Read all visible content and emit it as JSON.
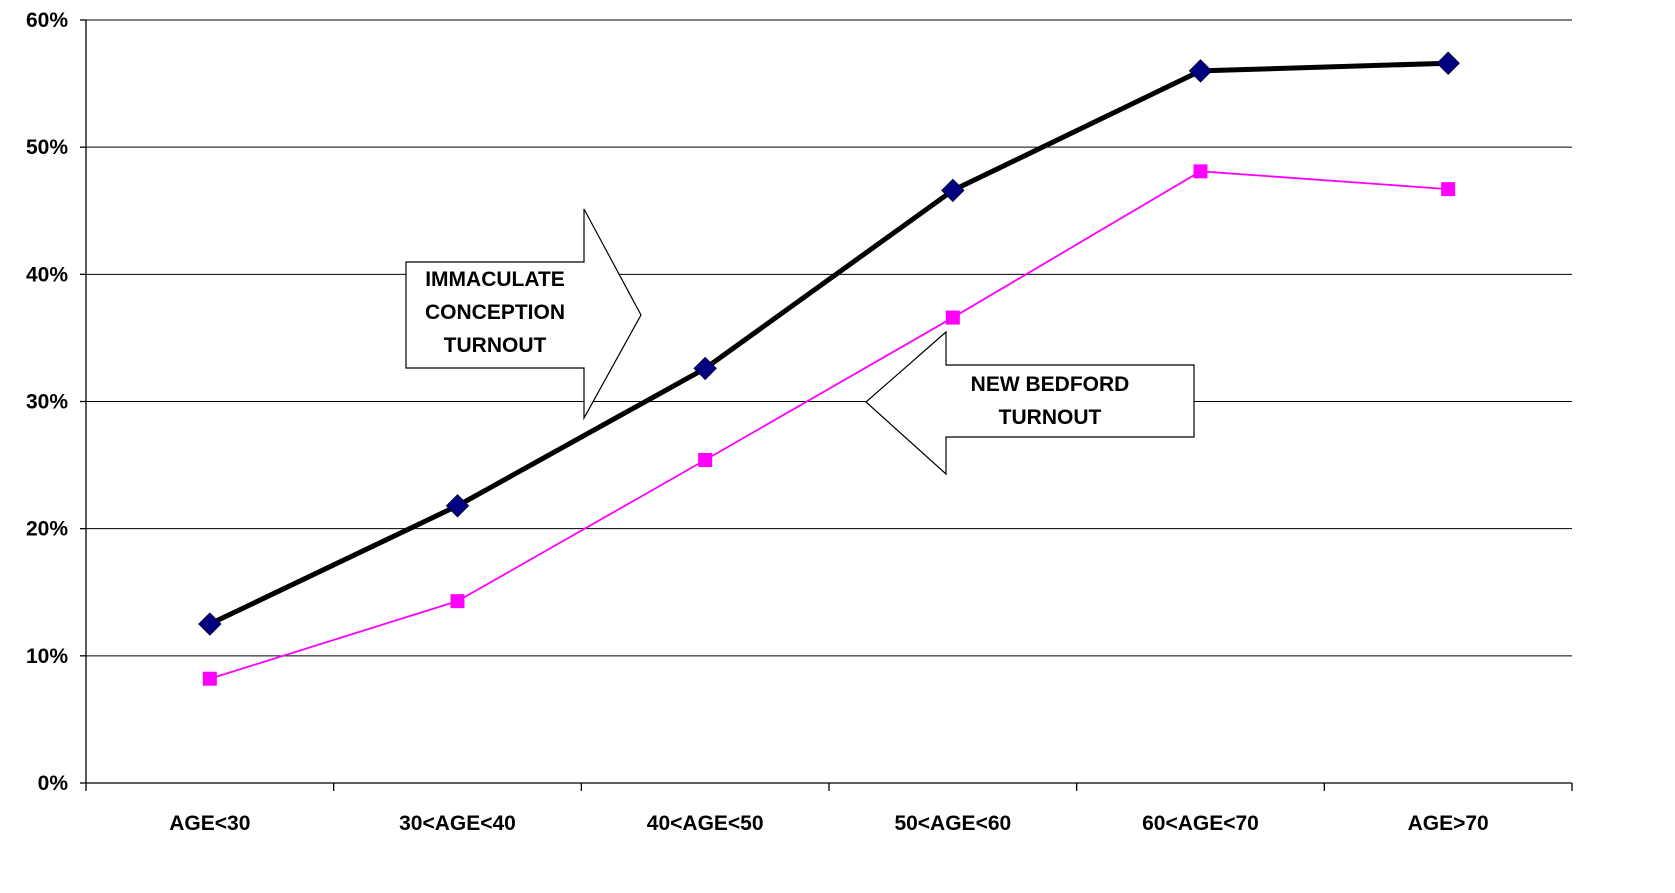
{
  "chart_data": {
    "type": "line",
    "categories": [
      "AGE<30",
      "30<AGE<40",
      "40<AGE<50",
      "50<AGE<60",
      "60<AGE<70",
      "AGE>70"
    ],
    "series": [
      {
        "values": [
          12.5,
          21.8,
          32.6,
          46.6,
          56.0,
          56.6
        ],
        "color": "#000000",
        "marker": "diamond",
        "marker_color": "#000080"
      },
      {
        "values": [
          8.2,
          14.3,
          25.4,
          36.6,
          48.1,
          46.7
        ],
        "color": "#ff00ff",
        "marker": "square",
        "marker_color": "#ff00ff"
      }
    ],
    "ylim": [
      0,
      60
    ],
    "yticks": [
      0,
      10,
      20,
      30,
      40,
      50,
      60
    ],
    "ytick_labels": [
      "0%",
      "10%",
      "20%",
      "30%",
      "40%",
      "50%",
      "60%"
    ],
    "grid": true,
    "legend": "none",
    "annotations": [
      {
        "lines": [
          "IMMACULATE",
          "CONCEPTION",
          "TURNOUT"
        ],
        "shape": "arrow-right"
      },
      {
        "lines": [
          "NEW BEDFORD",
          "TURNOUT"
        ],
        "shape": "arrow-left"
      }
    ]
  }
}
